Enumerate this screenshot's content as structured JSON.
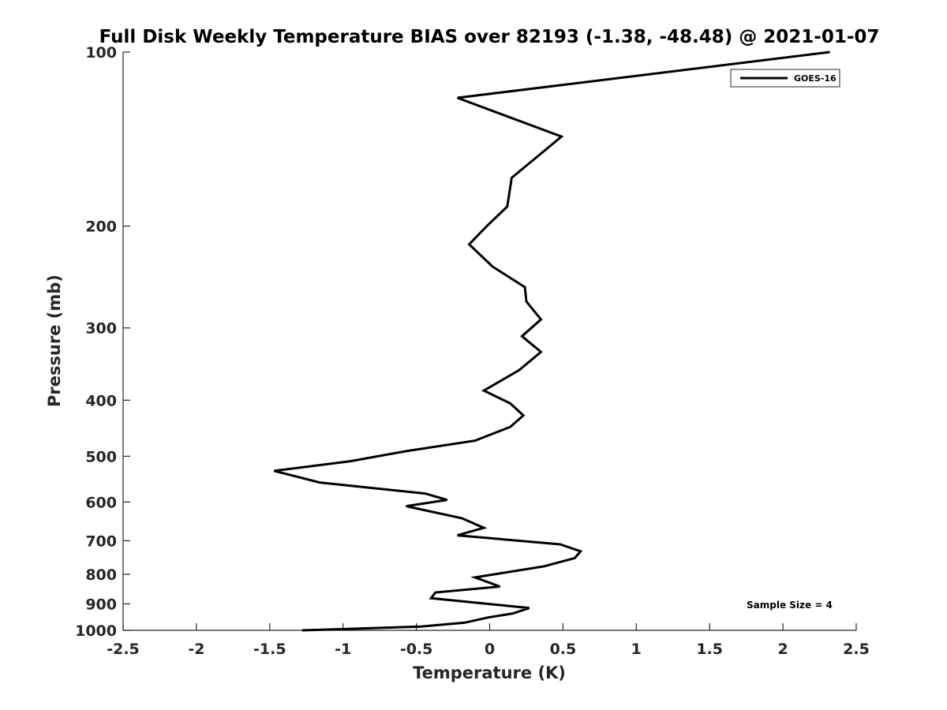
{
  "chart_data": {
    "type": "line",
    "title": "Full Disk Weekly Temperature BIAS over 82193 (-1.38, -48.48) @ 2021-01-07",
    "xlabel": "Temperature (K)",
    "ylabel": "Pressure (mb)",
    "xlim": [
      -2.5,
      2.5
    ],
    "ylim": [
      1000,
      100
    ],
    "yscale": "log",
    "y_reversed": true,
    "grid": false,
    "legend_position": "top-right",
    "x_ticks": [
      "-2.5",
      "-2",
      "-1.5",
      "-1",
      "-0.5",
      "0",
      "0.5",
      "1",
      "1.5",
      "2",
      "2.5"
    ],
    "y_ticks": [
      "100",
      "200",
      "300",
      "400",
      "500",
      "600",
      "700",
      "800",
      "900",
      "1000"
    ],
    "annotations": [
      "Sample Size = 4"
    ],
    "series": [
      {
        "name": "GOES-16",
        "color": "#000000",
        "x": [
          2.32,
          -0.22,
          0.49,
          0.15,
          0.12,
          -0.02,
          -0.14,
          0.02,
          0.24,
          0.25,
          0.35,
          0.22,
          0.35,
          0.2,
          -0.04,
          0.14,
          0.23,
          0.14,
          -0.1,
          -0.57,
          -0.95,
          -1.47,
          -1.16,
          -0.44,
          -0.29,
          -0.57,
          -0.19,
          -0.04,
          -0.22,
          0.48,
          0.62,
          0.58,
          0.37,
          -0.1,
          0.07,
          -0.37,
          -0.4,
          0.27,
          0.16,
          -0.01,
          -0.17,
          -0.47,
          -0.99,
          -1.28
        ],
        "y": [
          100,
          120,
          140,
          165,
          185,
          200,
          215,
          235,
          255,
          270,
          290,
          310,
          330,
          355,
          385,
          405,
          425,
          445,
          470,
          490,
          510,
          530,
          555,
          580,
          595,
          610,
          640,
          665,
          685,
          710,
          730,
          750,
          775,
          810,
          840,
          860,
          880,
          915,
          935,
          950,
          970,
          985,
          995,
          1000
        ]
      }
    ]
  }
}
